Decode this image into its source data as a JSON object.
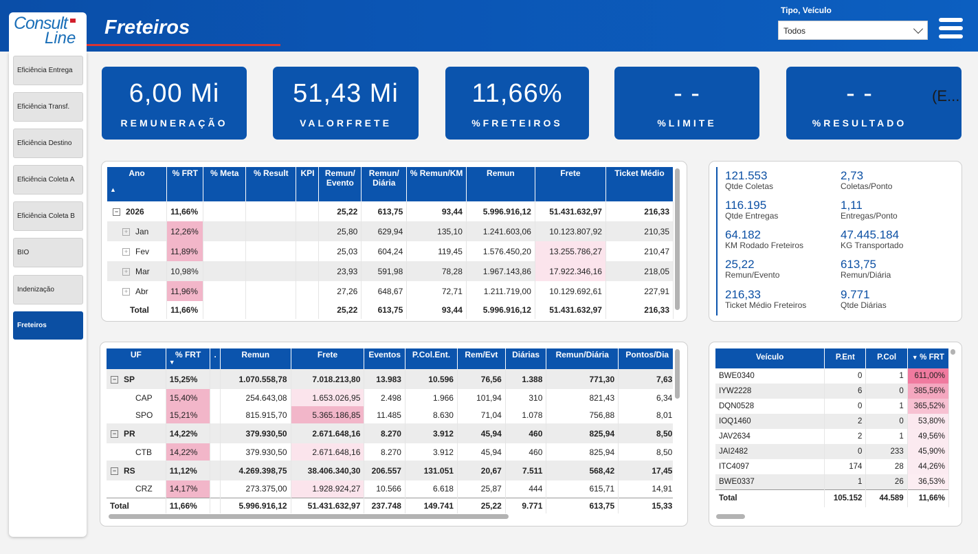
{
  "header": {
    "title": "Freteiros",
    "filter_label": "Tipo, Veículo",
    "filter_value": "Todos",
    "logo": "Consult Line"
  },
  "sidebar": {
    "items": [
      {
        "label": "Eficiência Entrega"
      },
      {
        "label": "Eficiência Transf."
      },
      {
        "label": "Eficiência Destino"
      },
      {
        "label": "Eficiência Coleta A"
      },
      {
        "label": "Eficiência Coleta B"
      },
      {
        "label": "BIO"
      },
      {
        "label": "Indenização"
      },
      {
        "label": "Freteiros"
      }
    ]
  },
  "kpis": [
    {
      "value": "6,00 Mi",
      "label": "REMUNERAÇÃO"
    },
    {
      "value": "51,43 Mi",
      "label": "VALORFRETE"
    },
    {
      "value": "11,66%",
      "label": "%FRETEIROS"
    },
    {
      "value": "- -",
      "label": "%LIMITE"
    },
    {
      "value": "- -",
      "label": "%RESULTADO",
      "extra": "(E..."
    }
  ],
  "table1": {
    "headers": [
      "Ano",
      "% FRT",
      "% Meta",
      "% Result",
      "KPI",
      "Remun/ Evento",
      "Remun/ Diária",
      "% Remun/KM",
      "Remun",
      "Frete",
      "Ticket Médio"
    ],
    "rows": [
      {
        "label": "2026",
        "level": 0,
        "cells": [
          "11,66%",
          "",
          "",
          "",
          "25,22",
          "613,75",
          "93,44",
          "5.996.916,12",
          "51.431.632,97",
          "216,33"
        ]
      },
      {
        "label": "Jan",
        "level": 1,
        "cells": [
          "12,26%",
          "",
          "",
          "",
          "25,80",
          "629,94",
          "135,10",
          "1.241.603,06",
          "10.123.807,92",
          "210,35"
        ]
      },
      {
        "label": "Fev",
        "level": 1,
        "cells": [
          "11,89%",
          "",
          "",
          "",
          "25,03",
          "604,24",
          "119,45",
          "1.576.450,20",
          "13.255.786,27",
          "210,47"
        ]
      },
      {
        "label": "Mar",
        "level": 1,
        "cells": [
          "10,98%",
          "",
          "",
          "",
          "23,93",
          "591,98",
          "78,28",
          "1.967.143,86",
          "17.922.346,16",
          "218,05"
        ]
      },
      {
        "label": "Abr",
        "level": 1,
        "cells": [
          "11,96%",
          "",
          "",
          "",
          "27,26",
          "648,67",
          "72,71",
          "1.211.719,00",
          "10.129.692,61",
          "227,91"
        ]
      }
    ],
    "total": {
      "label": "Total",
      "cells": [
        "11,66%",
        "",
        "",
        "",
        "25,22",
        "613,75",
        "93,44",
        "5.996.916,12",
        "51.431.632,97",
        "216,33"
      ]
    }
  },
  "stats": [
    {
      "value": "121.553",
      "label": "Qtde Coletas"
    },
    {
      "value": "2,73",
      "label": "Coletas/Ponto"
    },
    {
      "value": "116.195",
      "label": "Qtde Entregas"
    },
    {
      "value": "1,11",
      "label": "Entregas/Ponto"
    },
    {
      "value": "64.182",
      "label": "KM Rodado Freteiros"
    },
    {
      "value": "47.445.184",
      "label": "KG Transportado"
    },
    {
      "value": "25,22",
      "label": "Remun/Evento"
    },
    {
      "value": "613,75",
      "label": "Remun/Diária"
    },
    {
      "value": "216,33",
      "label": "Ticket Médio Freteiros"
    },
    {
      "value": "9.771",
      "label": "Qtde Diárias"
    }
  ],
  "table2": {
    "headers": [
      "UF",
      "% FRT",
      ".",
      "Remun",
      "Frete",
      "Eventos",
      "P.Col.Ent.",
      "Rem/Evt",
      "Diárias",
      "Remun/Diária",
      "Pontos/Dia"
    ],
    "rows": [
      {
        "label": "SP",
        "level": 0,
        "cells": [
          "15,25%",
          "",
          "1.070.558,78",
          "7.018.213,80",
          "13.983",
          "10.596",
          "76,56",
          "1.388",
          "771,30",
          "7,63"
        ],
        "extra": ""
      },
      {
        "label": "CAP",
        "level": 1,
        "cells": [
          "15,40%",
          "",
          "254.643,08",
          "1.653.026,95",
          "2.498",
          "1.966",
          "101,94",
          "310",
          "821,43",
          "6,34"
        ]
      },
      {
        "label": "SPO",
        "level": 1,
        "cells": [
          "15,21%",
          "",
          "815.915,70",
          "5.365.186,85",
          "11.485",
          "8.630",
          "71,04",
          "1.078",
          "756,88",
          "8,01"
        ]
      },
      {
        "label": "PR",
        "level": 0,
        "cells": [
          "14,22%",
          "",
          "379.930,50",
          "2.671.648,16",
          "8.270",
          "3.912",
          "45,94",
          "460",
          "825,94",
          "8,50"
        ]
      },
      {
        "label": "CTB",
        "level": 1,
        "cells": [
          "14,22%",
          "",
          "379.930,50",
          "2.671.648,16",
          "8.270",
          "3.912",
          "45,94",
          "460",
          "825,94",
          "8,50"
        ]
      },
      {
        "label": "RS",
        "level": 0,
        "cells": [
          "11,12%",
          "",
          "4.269.398,75",
          "38.406.340,30",
          "206.557",
          "131.051",
          "20,67",
          "7.511",
          "568,42",
          "17,45"
        ],
        "extra": "4"
      },
      {
        "label": "CRZ",
        "level": 1,
        "cells": [
          "14,17%",
          "",
          "273.375,00",
          "1.928.924,27",
          "10.566",
          "6.618",
          "25,87",
          "444",
          "615,71",
          "14,91"
        ]
      }
    ],
    "total": {
      "label": "Total",
      "cells": [
        "11,66%",
        "",
        "5.996.916,12",
        "51.431.632,97",
        "237.748",
        "149.741",
        "25,22",
        "9.771",
        "613,75",
        "15,33"
      ],
      "extra": "6"
    }
  },
  "table3": {
    "headers": [
      "Veículo",
      "P.Ent",
      "P.Col",
      "% FRT"
    ],
    "rows": [
      [
        "BWE0340",
        "0",
        "1",
        "611,00%"
      ],
      [
        "IYW2228",
        "6",
        "0",
        "385,56%"
      ],
      [
        "DQN0528",
        "0",
        "1",
        "365,52%"
      ],
      [
        "IOQ1460",
        "2",
        "0",
        "53,80%"
      ],
      [
        "JAV2634",
        "2",
        "1",
        "49,56%"
      ],
      [
        "JAI2482",
        "0",
        "233",
        "45,90%"
      ],
      [
        "ITC4097",
        "174",
        "28",
        "44,26%"
      ],
      [
        "BWE0337",
        "1",
        "26",
        "36,53%"
      ]
    ],
    "total": [
      "Total",
      "105.152",
      "44.589",
      "11,66%"
    ]
  },
  "colors": {
    "primary": "#0b54ad",
    "pink": "#f2b6c9",
    "accent_red": "#d83434"
  }
}
